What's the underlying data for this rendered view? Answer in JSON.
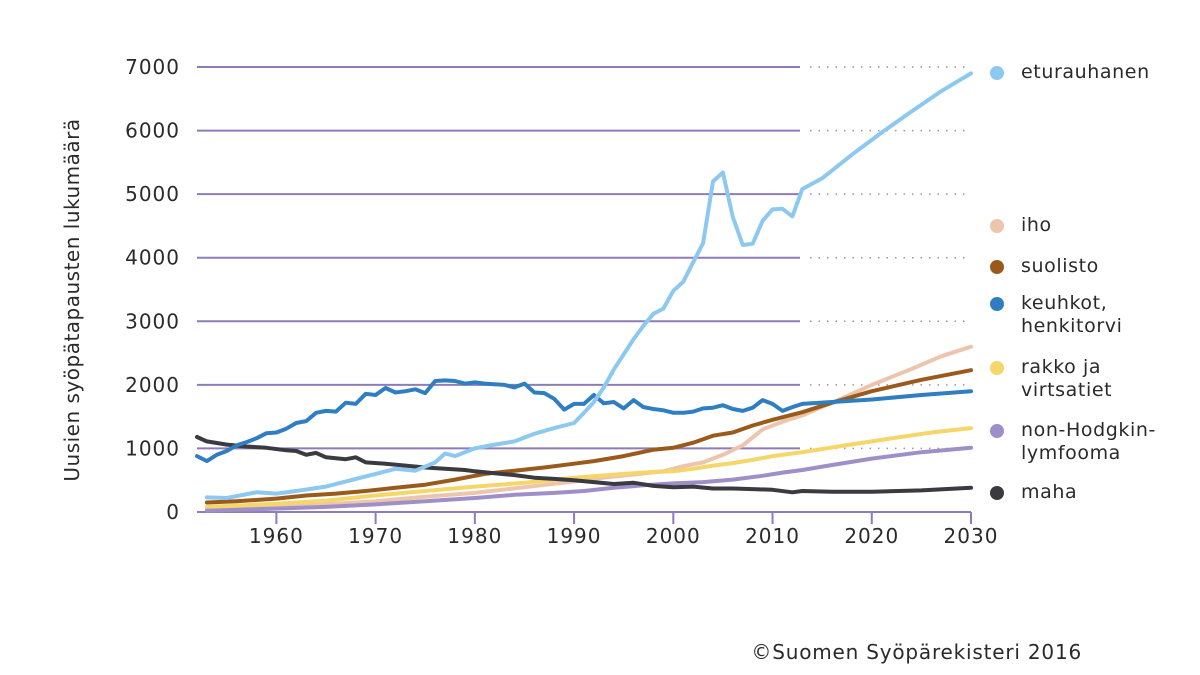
{
  "chart_data": {
    "type": "line",
    "ylabel": "Uusien syöpätapausten lukumäärä",
    "ylim": [
      0,
      7000
    ],
    "xlim": [
      1952,
      2030
    ],
    "y_ticks": [
      0,
      1000,
      2000,
      3000,
      4000,
      5000,
      6000,
      7000
    ],
    "y_tick_labels": [
      "0",
      "1000",
      "2000",
      "3000",
      "4000",
      "5000",
      "6000",
      "7000"
    ],
    "x_ticks": [
      1960,
      1970,
      1980,
      1990,
      2000,
      2010,
      2020,
      2030
    ],
    "x_tick_labels": [
      "1960",
      "1970",
      "1980",
      "1990",
      "2000",
      "2010",
      "2020",
      "2030"
    ],
    "grid": "horizontal, dotted beyond 2013",
    "legend_position": "right",
    "series": [
      {
        "name": "eturauhanen",
        "color": "#8DC8F0",
        "points": [
          [
            1953,
            230
          ],
          [
            1955,
            220
          ],
          [
            1958,
            310
          ],
          [
            1960,
            290
          ],
          [
            1962,
            330
          ],
          [
            1965,
            400
          ],
          [
            1968,
            520
          ],
          [
            1970,
            600
          ],
          [
            1972,
            680
          ],
          [
            1974,
            650
          ],
          [
            1976,
            780
          ],
          [
            1977,
            920
          ],
          [
            1978,
            880
          ],
          [
            1980,
            1000
          ],
          [
            1982,
            1060
          ],
          [
            1984,
            1110
          ],
          [
            1986,
            1230
          ],
          [
            1988,
            1320
          ],
          [
            1990,
            1400
          ],
          [
            1991,
            1560
          ],
          [
            1992,
            1730
          ],
          [
            1993,
            1960
          ],
          [
            1994,
            2240
          ],
          [
            1995,
            2480
          ],
          [
            1996,
            2720
          ],
          [
            1997,
            2930
          ],
          [
            1998,
            3120
          ],
          [
            1999,
            3200
          ],
          [
            2000,
            3480
          ],
          [
            2001,
            3620
          ],
          [
            2002,
            3930
          ],
          [
            2003,
            4230
          ],
          [
            2004,
            5200
          ],
          [
            2005,
            5340
          ],
          [
            2006,
            4640
          ],
          [
            2007,
            4200
          ],
          [
            2008,
            4220
          ],
          [
            2009,
            4580
          ],
          [
            2010,
            4760
          ],
          [
            2011,
            4770
          ],
          [
            2012,
            4650
          ],
          [
            2013,
            5080
          ],
          [
            2015,
            5250
          ],
          [
            2018,
            5620
          ],
          [
            2021,
            5970
          ],
          [
            2024,
            6300
          ],
          [
            2027,
            6620
          ],
          [
            2030,
            6900
          ]
        ]
      },
      {
        "name": "iho",
        "color": "#EDC4AC",
        "points": [
          [
            1953,
            50
          ],
          [
            1956,
            70
          ],
          [
            1960,
            90
          ],
          [
            1965,
            120
          ],
          [
            1970,
            170
          ],
          [
            1975,
            240
          ],
          [
            1980,
            300
          ],
          [
            1985,
            390
          ],
          [
            1990,
            480
          ],
          [
            1993,
            540
          ],
          [
            1996,
            590
          ],
          [
            1999,
            640
          ],
          [
            2001,
            720
          ],
          [
            2003,
            780
          ],
          [
            2005,
            900
          ],
          [
            2007,
            1050
          ],
          [
            2009,
            1300
          ],
          [
            2011,
            1420
          ],
          [
            2013,
            1520
          ],
          [
            2016,
            1720
          ],
          [
            2020,
            2000
          ],
          [
            2024,
            2250
          ],
          [
            2027,
            2450
          ],
          [
            2030,
            2600
          ]
        ]
      },
      {
        "name": "suolisto",
        "color": "#9A5A1B",
        "points": [
          [
            1953,
            150
          ],
          [
            1956,
            170
          ],
          [
            1960,
            210
          ],
          [
            1963,
            260
          ],
          [
            1966,
            290
          ],
          [
            1969,
            330
          ],
          [
            1972,
            380
          ],
          [
            1975,
            430
          ],
          [
            1978,
            510
          ],
          [
            1981,
            600
          ],
          [
            1984,
            650
          ],
          [
            1987,
            700
          ],
          [
            1990,
            760
          ],
          [
            1992,
            800
          ],
          [
            1995,
            880
          ],
          [
            1998,
            980
          ],
          [
            2000,
            1010
          ],
          [
            2002,
            1090
          ],
          [
            2004,
            1200
          ],
          [
            2006,
            1250
          ],
          [
            2008,
            1360
          ],
          [
            2010,
            1450
          ],
          [
            2013,
            1570
          ],
          [
            2016,
            1720
          ],
          [
            2020,
            1900
          ],
          [
            2025,
            2080
          ],
          [
            2030,
            2230
          ]
        ]
      },
      {
        "name": "keuhkot,\nhenkitorvi",
        "color": "#2E7EC1",
        "points": [
          [
            1952,
            880
          ],
          [
            1953,
            800
          ],
          [
            1954,
            900
          ],
          [
            1955,
            960
          ],
          [
            1956,
            1050
          ],
          [
            1957,
            1100
          ],
          [
            1958,
            1160
          ],
          [
            1959,
            1240
          ],
          [
            1960,
            1250
          ],
          [
            1961,
            1310
          ],
          [
            1962,
            1400
          ],
          [
            1963,
            1430
          ],
          [
            1964,
            1560
          ],
          [
            1965,
            1590
          ],
          [
            1966,
            1580
          ],
          [
            1967,
            1720
          ],
          [
            1968,
            1700
          ],
          [
            1969,
            1860
          ],
          [
            1970,
            1840
          ],
          [
            1971,
            1950
          ],
          [
            1972,
            1880
          ],
          [
            1973,
            1900
          ],
          [
            1974,
            1930
          ],
          [
            1975,
            1870
          ],
          [
            1976,
            2060
          ],
          [
            1977,
            2070
          ],
          [
            1978,
            2060
          ],
          [
            1979,
            2020
          ],
          [
            1980,
            2040
          ],
          [
            1981,
            2020
          ],
          [
            1982,
            2010
          ],
          [
            1983,
            2000
          ],
          [
            1984,
            1960
          ],
          [
            1985,
            2020
          ],
          [
            1986,
            1880
          ],
          [
            1987,
            1870
          ],
          [
            1988,
            1780
          ],
          [
            1989,
            1610
          ],
          [
            1990,
            1700
          ],
          [
            1991,
            1700
          ],
          [
            1992,
            1840
          ],
          [
            1993,
            1710
          ],
          [
            1994,
            1730
          ],
          [
            1995,
            1630
          ],
          [
            1996,
            1760
          ],
          [
            1997,
            1650
          ],
          [
            1998,
            1620
          ],
          [
            1999,
            1600
          ],
          [
            2000,
            1560
          ],
          [
            2001,
            1560
          ],
          [
            2002,
            1580
          ],
          [
            2003,
            1630
          ],
          [
            2004,
            1640
          ],
          [
            2005,
            1680
          ],
          [
            2006,
            1620
          ],
          [
            2007,
            1590
          ],
          [
            2008,
            1640
          ],
          [
            2009,
            1760
          ],
          [
            2010,
            1700
          ],
          [
            2011,
            1590
          ],
          [
            2012,
            1650
          ],
          [
            2013,
            1700
          ],
          [
            2016,
            1730
          ],
          [
            2020,
            1770
          ],
          [
            2025,
            1840
          ],
          [
            2030,
            1900
          ]
        ]
      },
      {
        "name": "rakko ja\nvirtsatiet",
        "color": "#F5D669",
        "points": [
          [
            1953,
            80
          ],
          [
            1956,
            100
          ],
          [
            1960,
            130
          ],
          [
            1965,
            180
          ],
          [
            1970,
            260
          ],
          [
            1975,
            330
          ],
          [
            1980,
            400
          ],
          [
            1985,
            460
          ],
          [
            1990,
            540
          ],
          [
            1995,
            600
          ],
          [
            1998,
            630
          ],
          [
            2000,
            640
          ],
          [
            2002,
            680
          ],
          [
            2004,
            730
          ],
          [
            2006,
            770
          ],
          [
            2008,
            820
          ],
          [
            2010,
            880
          ],
          [
            2013,
            940
          ],
          [
            2017,
            1040
          ],
          [
            2022,
            1160
          ],
          [
            2026,
            1250
          ],
          [
            2030,
            1320
          ]
        ]
      },
      {
        "name": "non-Hodgkin-\nlymfooma",
        "color": "#9F8FC9",
        "points": [
          [
            1953,
            20
          ],
          [
            1957,
            40
          ],
          [
            1961,
            60
          ],
          [
            1965,
            80
          ],
          [
            1970,
            120
          ],
          [
            1975,
            170
          ],
          [
            1980,
            220
          ],
          [
            1984,
            270
          ],
          [
            1988,
            300
          ],
          [
            1991,
            330
          ],
          [
            1994,
            380
          ],
          [
            1997,
            420
          ],
          [
            2000,
            450
          ],
          [
            2003,
            470
          ],
          [
            2006,
            510
          ],
          [
            2009,
            570
          ],
          [
            2011,
            620
          ],
          [
            2013,
            660
          ],
          [
            2016,
            740
          ],
          [
            2020,
            840
          ],
          [
            2025,
            940
          ],
          [
            2030,
            1010
          ]
        ]
      },
      {
        "name": "maha",
        "color": "#3A3A40",
        "points": [
          [
            1952,
            1180
          ],
          [
            1953,
            1110
          ],
          [
            1955,
            1060
          ],
          [
            1957,
            1030
          ],
          [
            1959,
            1010
          ],
          [
            1961,
            970
          ],
          [
            1962,
            960
          ],
          [
            1963,
            900
          ],
          [
            1964,
            930
          ],
          [
            1965,
            860
          ],
          [
            1967,
            830
          ],
          [
            1968,
            860
          ],
          [
            1969,
            780
          ],
          [
            1971,
            760
          ],
          [
            1973,
            730
          ],
          [
            1975,
            700
          ],
          [
            1977,
            680
          ],
          [
            1979,
            660
          ],
          [
            1980,
            640
          ],
          [
            1982,
            610
          ],
          [
            1984,
            580
          ],
          [
            1986,
            540
          ],
          [
            1988,
            520
          ],
          [
            1990,
            500
          ],
          [
            1992,
            470
          ],
          [
            1994,
            440
          ],
          [
            1996,
            460
          ],
          [
            1998,
            410
          ],
          [
            2000,
            390
          ],
          [
            2002,
            400
          ],
          [
            2004,
            370
          ],
          [
            2006,
            370
          ],
          [
            2008,
            360
          ],
          [
            2010,
            350
          ],
          [
            2012,
            310
          ],
          [
            2013,
            330
          ],
          [
            2016,
            320
          ],
          [
            2020,
            320
          ],
          [
            2025,
            340
          ],
          [
            2030,
            380
          ]
        ]
      }
    ]
  },
  "copyright": "©Suomen Syöpärekisteri 2016"
}
